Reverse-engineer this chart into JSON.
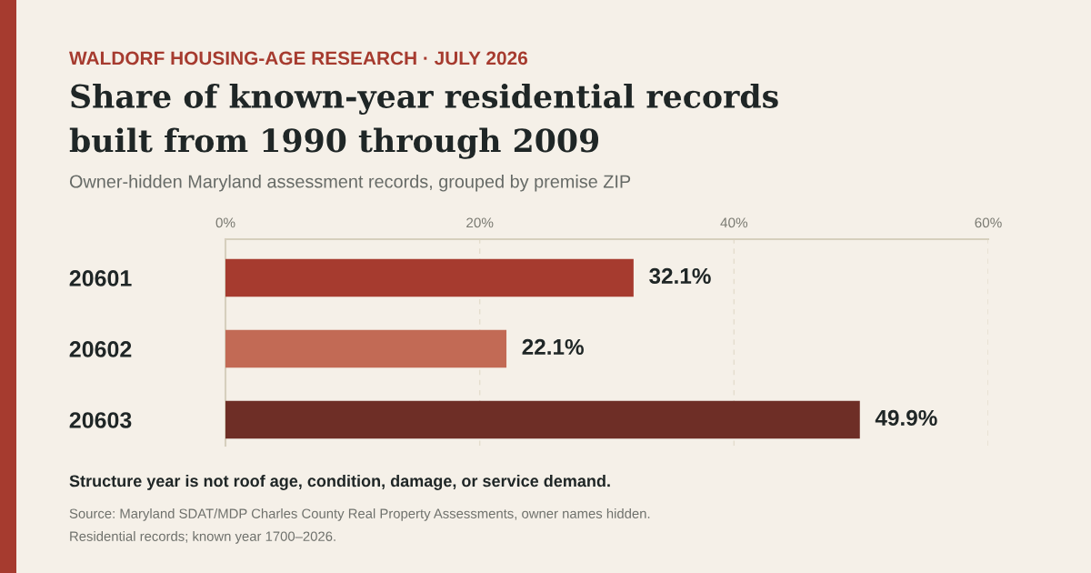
{
  "chart_data": {
    "type": "bar",
    "orientation": "horizontal",
    "title": "Share of known-year residential records built from 1990 through 2009",
    "subtitle": "Owner-hidden Maryland assessment records, grouped by premise ZIP",
    "annotations": [
      "WALDORF HOUSING-AGE RESEARCH · JULY 2026",
      "Structure year is not roof age, condition, damage, or service demand.",
      "Source: Maryland SDAT/MDP Charles County Real Property Assessments, owner names hidden.",
      "Residential records; known year 1700–2026."
    ],
    "categories": [
      "20601",
      "20602",
      "20603"
    ],
    "values": [
      32.1,
      22.1,
      49.9
    ],
    "value_labels": [
      "32.1%",
      "22.1%",
      "49.9%"
    ],
    "colors": [
      "#a63b2f",
      "#c26a55",
      "#6e2e26"
    ],
    "xlim": [
      0,
      60
    ],
    "xticks": [
      {
        "value": 0,
        "label": "0%"
      },
      {
        "value": 20,
        "label": "20%"
      },
      {
        "value": 40,
        "label": "40%"
      },
      {
        "value": 60,
        "label": "60%"
      }
    ],
    "grid": "x"
  }
}
